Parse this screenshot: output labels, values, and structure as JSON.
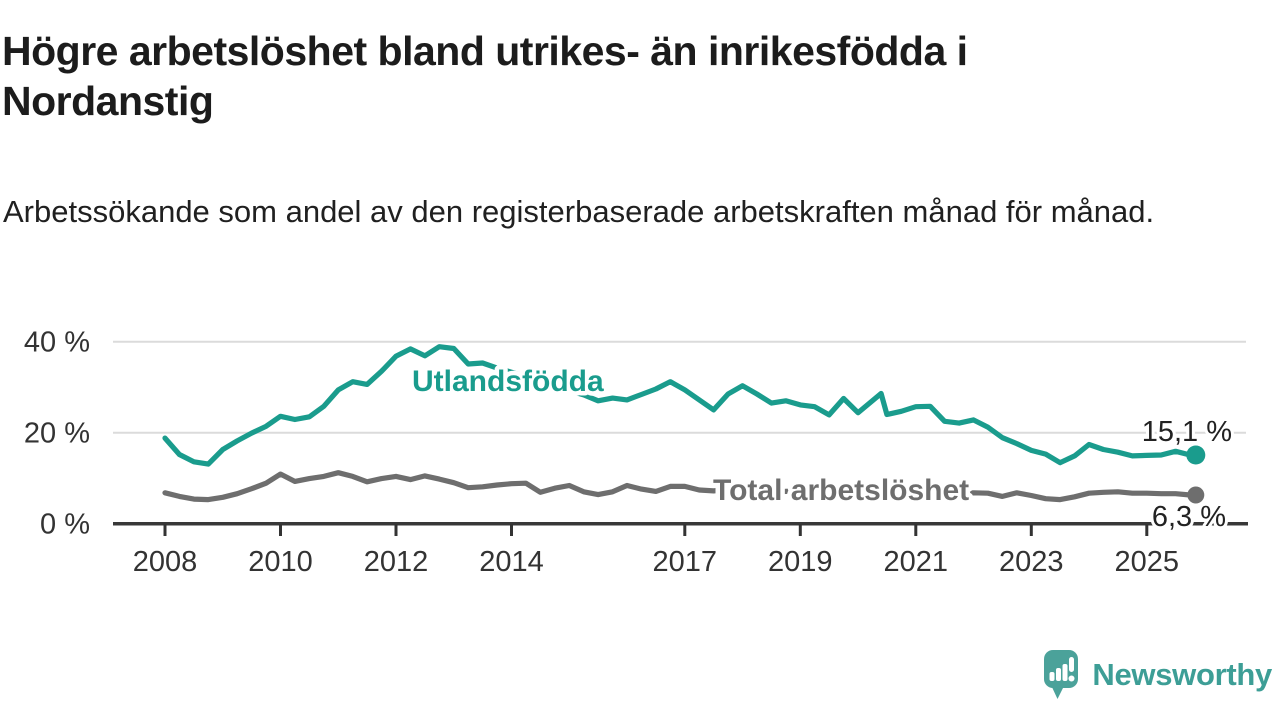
{
  "header": {
    "title": "Högre arbetslöshet bland utrikes- än inrikesfödda i Nordanstig",
    "subtitle": "Arbetssökande som andel av den registerbaserade arbetskraften månad för månad."
  },
  "footer": {
    "brand": "Newsworthy",
    "logo_icon": "speech-bubble-bar-chart-icon",
    "brand_text_color": "#3d9e96",
    "brand_icon_color": "#4ba29a"
  },
  "colors": {
    "background": "#ffffff",
    "title": "#1c1c1c",
    "axis": "#383838",
    "tick_label": "#333333",
    "gridline": "#dbdbdb",
    "series_foreign_born": "#1a9c8d",
    "series_total": "#6e6e6e",
    "end_label": "#222222"
  },
  "chart_data": {
    "type": "line",
    "title": "Högre arbetslöshet bland utrikes- än inrikesfödda i Nordanstig",
    "subtitle": "Arbetssökande som andel av den registerbaserade arbetskraften månad för månad.",
    "xlabel": "",
    "ylabel": "",
    "x_unit": "year (monthly data)",
    "y_unit": "%",
    "ylim": [
      0,
      44
    ],
    "xlim": [
      2007.1,
      2026.75
    ],
    "grid": "horizontal",
    "legend_position": "inline-labels",
    "y_ticks": [
      {
        "value": 0,
        "label": "0 %"
      },
      {
        "value": 20,
        "label": "20 %"
      },
      {
        "value": 40,
        "label": "40 %"
      }
    ],
    "x_ticks": [
      {
        "value": 2008,
        "label": "2008"
      },
      {
        "value": 2010,
        "label": "2010"
      },
      {
        "value": 2012,
        "label": "2012"
      },
      {
        "value": 2014,
        "label": "2014"
      },
      {
        "value": 2017,
        "label": "2017"
      },
      {
        "value": 2019,
        "label": "2019"
      },
      {
        "value": 2021,
        "label": "2021"
      },
      {
        "value": 2023,
        "label": "2023"
      },
      {
        "value": 2025,
        "label": "2025"
      }
    ],
    "series": [
      {
        "name": "Utlandsfödda",
        "color": "#1a9c8d",
        "end_label": "15,1 %",
        "end_value": 15.1,
        "points": [
          [
            2008.0,
            18.8
          ],
          [
            2008.25,
            15.2
          ],
          [
            2008.5,
            13.6
          ],
          [
            2008.75,
            13.1
          ],
          [
            2009.0,
            16.3
          ],
          [
            2009.25,
            18.2
          ],
          [
            2009.5,
            19.9
          ],
          [
            2009.75,
            21.4
          ],
          [
            2010.0,
            23.6
          ],
          [
            2010.25,
            22.9
          ],
          [
            2010.5,
            23.5
          ],
          [
            2010.75,
            25.8
          ],
          [
            2011.0,
            29.4
          ],
          [
            2011.25,
            31.2
          ],
          [
            2011.5,
            30.6
          ],
          [
            2011.75,
            33.5
          ],
          [
            2012.0,
            36.8
          ],
          [
            2012.25,
            38.4
          ],
          [
            2012.5,
            36.9
          ],
          [
            2012.75,
            38.9
          ],
          [
            2013.0,
            38.5
          ],
          [
            2013.25,
            35.1
          ],
          [
            2013.5,
            35.3
          ],
          [
            2013.75,
            34.2
          ],
          [
            2014.0,
            33.3
          ],
          [
            2014.25,
            32.3
          ],
          [
            2014.5,
            31.2
          ],
          [
            2014.75,
            30.1
          ],
          [
            2015.0,
            29.2
          ],
          [
            2015.25,
            28.3
          ],
          [
            2015.5,
            27.0
          ],
          [
            2015.75,
            27.6
          ],
          [
            2016.0,
            27.2
          ],
          [
            2016.25,
            28.4
          ],
          [
            2016.5,
            29.6
          ],
          [
            2016.75,
            31.2
          ],
          [
            2017.0,
            29.4
          ],
          [
            2017.25,
            27.2
          ],
          [
            2017.5,
            25.0
          ],
          [
            2017.75,
            28.5
          ],
          [
            2018.0,
            30.3
          ],
          [
            2018.25,
            28.5
          ],
          [
            2018.5,
            26.5
          ],
          [
            2018.75,
            27.0
          ],
          [
            2019.0,
            26.1
          ],
          [
            2019.25,
            25.7
          ],
          [
            2019.5,
            23.9
          ],
          [
            2019.75,
            27.5
          ],
          [
            2020.0,
            24.4
          ],
          [
            2020.25,
            27.0
          ],
          [
            2020.4,
            28.6
          ],
          [
            2020.5,
            24.0
          ],
          [
            2020.75,
            24.7
          ],
          [
            2021.0,
            25.7
          ],
          [
            2021.25,
            25.8
          ],
          [
            2021.5,
            22.5
          ],
          [
            2021.75,
            22.1
          ],
          [
            2022.0,
            22.8
          ],
          [
            2022.25,
            21.2
          ],
          [
            2022.5,
            18.9
          ],
          [
            2022.75,
            17.6
          ],
          [
            2023.0,
            16.1
          ],
          [
            2023.25,
            15.3
          ],
          [
            2023.5,
            13.4
          ],
          [
            2023.75,
            14.9
          ],
          [
            2024.0,
            17.4
          ],
          [
            2024.25,
            16.3
          ],
          [
            2024.5,
            15.7
          ],
          [
            2024.75,
            14.9
          ],
          [
            2025.0,
            15.0
          ],
          [
            2025.25,
            15.1
          ],
          [
            2025.5,
            15.9
          ],
          [
            2025.75,
            15.1
          ],
          [
            2025.85,
            15.1
          ]
        ]
      },
      {
        "name": "Total arbetslöshet",
        "color": "#6e6e6e",
        "end_label": "6,3 %",
        "end_value": 6.3,
        "points": [
          [
            2008.0,
            6.8
          ],
          [
            2008.25,
            6.0
          ],
          [
            2008.5,
            5.4
          ],
          [
            2008.75,
            5.3
          ],
          [
            2009.0,
            5.8
          ],
          [
            2009.25,
            6.6
          ],
          [
            2009.5,
            7.7
          ],
          [
            2009.75,
            8.9
          ],
          [
            2010.0,
            10.9
          ],
          [
            2010.25,
            9.3
          ],
          [
            2010.5,
            9.9
          ],
          [
            2010.75,
            10.4
          ],
          [
            2011.0,
            11.2
          ],
          [
            2011.25,
            10.4
          ],
          [
            2011.5,
            9.2
          ],
          [
            2011.75,
            9.9
          ],
          [
            2012.0,
            10.4
          ],
          [
            2012.25,
            9.7
          ],
          [
            2012.5,
            10.5
          ],
          [
            2012.75,
            9.8
          ],
          [
            2013.0,
            9.0
          ],
          [
            2013.25,
            7.9
          ],
          [
            2013.5,
            8.1
          ],
          [
            2013.75,
            8.5
          ],
          [
            2014.0,
            8.8
          ],
          [
            2014.25,
            8.9
          ],
          [
            2014.5,
            6.9
          ],
          [
            2014.75,
            7.8
          ],
          [
            2015.0,
            8.4
          ],
          [
            2015.25,
            7.0
          ],
          [
            2015.5,
            6.4
          ],
          [
            2015.75,
            7.0
          ],
          [
            2016.0,
            8.4
          ],
          [
            2016.25,
            7.6
          ],
          [
            2016.5,
            7.1
          ],
          [
            2016.75,
            8.2
          ],
          [
            2017.0,
            8.2
          ],
          [
            2017.25,
            7.4
          ],
          [
            2017.5,
            7.2
          ],
          [
            2017.75,
            7.5
          ],
          [
            2018.0,
            7.8
          ],
          [
            2018.25,
            7.3
          ],
          [
            2018.5,
            6.9
          ],
          [
            2018.75,
            7.1
          ],
          [
            2019.0,
            7.2
          ],
          [
            2019.25,
            6.8
          ],
          [
            2019.5,
            6.5
          ],
          [
            2019.75,
            6.8
          ],
          [
            2020.0,
            7.0
          ],
          [
            2020.25,
            7.8
          ],
          [
            2020.5,
            7.4
          ],
          [
            2020.75,
            7.2
          ],
          [
            2021.0,
            7.0
          ],
          [
            2021.25,
            6.9
          ],
          [
            2021.5,
            6.7
          ],
          [
            2021.75,
            6.6
          ],
          [
            2022.0,
            6.8
          ],
          [
            2022.25,
            6.7
          ],
          [
            2022.5,
            6.0
          ],
          [
            2022.75,
            6.8
          ],
          [
            2023.0,
            6.2
          ],
          [
            2023.25,
            5.5
          ],
          [
            2023.5,
            5.3
          ],
          [
            2023.75,
            5.9
          ],
          [
            2024.0,
            6.7
          ],
          [
            2024.25,
            6.9
          ],
          [
            2024.5,
            7.0
          ],
          [
            2024.75,
            6.7
          ],
          [
            2025.0,
            6.7
          ],
          [
            2025.25,
            6.6
          ],
          [
            2025.5,
            6.6
          ],
          [
            2025.75,
            6.3
          ],
          [
            2025.85,
            6.3
          ]
        ]
      }
    ]
  }
}
